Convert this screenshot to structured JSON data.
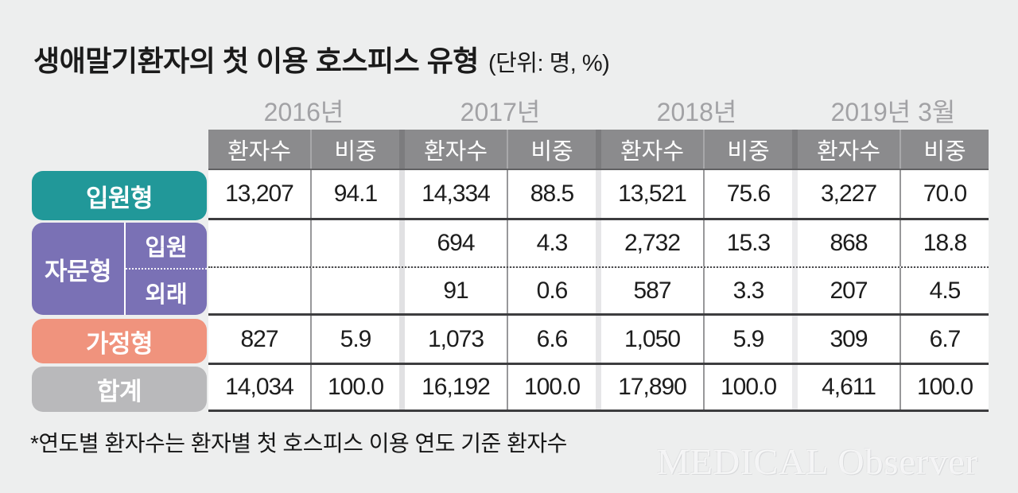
{
  "title": {
    "main": "생애말기환자의 첫 이용 호스피스 유형",
    "unit": "(단위: 명, %)"
  },
  "table": {
    "years": [
      "2016년",
      "2017년",
      "2018년",
      "2019년 3월"
    ],
    "sub_headers": {
      "count": "환자수",
      "share": "비중"
    },
    "rows": {
      "inpatient": {
        "label": "입원형",
        "values": [
          "13,207",
          "94.1",
          "14,334",
          "88.5",
          "13,521",
          "75.6",
          "3,227",
          "70.0"
        ]
      },
      "consult": {
        "label": "자문형",
        "sub": [
          {
            "label": "입원",
            "values": [
              "",
              "",
              "694",
              "4.3",
              "2,732",
              "15.3",
              "868",
              "18.8"
            ]
          },
          {
            "label": "외래",
            "values": [
              "",
              "",
              "91",
              "0.6",
              "587",
              "3.3",
              "207",
              "4.5"
            ]
          }
        ]
      },
      "home": {
        "label": "가정형",
        "values": [
          "827",
          "5.9",
          "1,073",
          "6.6",
          "1,050",
          "5.9",
          "309",
          "6.7"
        ]
      },
      "total": {
        "label": "합계",
        "values": [
          "14,034",
          "100.0",
          "16,192",
          "100.0",
          "17,890",
          "100.0",
          "4,611",
          "100.0"
        ]
      }
    }
  },
  "footnote": "*연도별 환자수는 환자별 첫 호스피스 이용 연도 기준 환자수",
  "watermark": "MEDICAL Observer",
  "colors": {
    "background": "#edeeee",
    "header_gray": "#8b8b8d",
    "inpatient_teal": "#219899",
    "consult_purple": "#7a71b5",
    "home_salmon": "#f0937d",
    "total_gray": "#b9b9bb",
    "year_label_gray": "#a2a2a5",
    "row_border_dark": "#3d3d3f"
  },
  "chart_data": {
    "type": "table",
    "title": "생애말기환자의 첫 이용 호스피스 유형",
    "unit": "명, %",
    "columns": [
      "2016년 환자수",
      "2016년 비중",
      "2017년 환자수",
      "2017년 비중",
      "2018년 환자수",
      "2018년 비중",
      "2019년 3월 환자수",
      "2019년 3월 비중"
    ],
    "rows": [
      {
        "label": "입원형",
        "values": [
          13207,
          94.1,
          14334,
          88.5,
          13521,
          75.6,
          3227,
          70.0
        ]
      },
      {
        "label": "자문형 입원",
        "values": [
          null,
          null,
          694,
          4.3,
          2732,
          15.3,
          868,
          18.8
        ]
      },
      {
        "label": "자문형 외래",
        "values": [
          null,
          null,
          91,
          0.6,
          587,
          3.3,
          207,
          4.5
        ]
      },
      {
        "label": "가정형",
        "values": [
          827,
          5.9,
          1073,
          6.6,
          1050,
          5.9,
          309,
          6.7
        ]
      },
      {
        "label": "합계",
        "values": [
          14034,
          100.0,
          16192,
          100.0,
          17890,
          100.0,
          4611,
          100.0
        ]
      }
    ],
    "footnote": "*연도별 환자수는 환자별 첫 호스피스 이용 연도 기준 환자수"
  }
}
